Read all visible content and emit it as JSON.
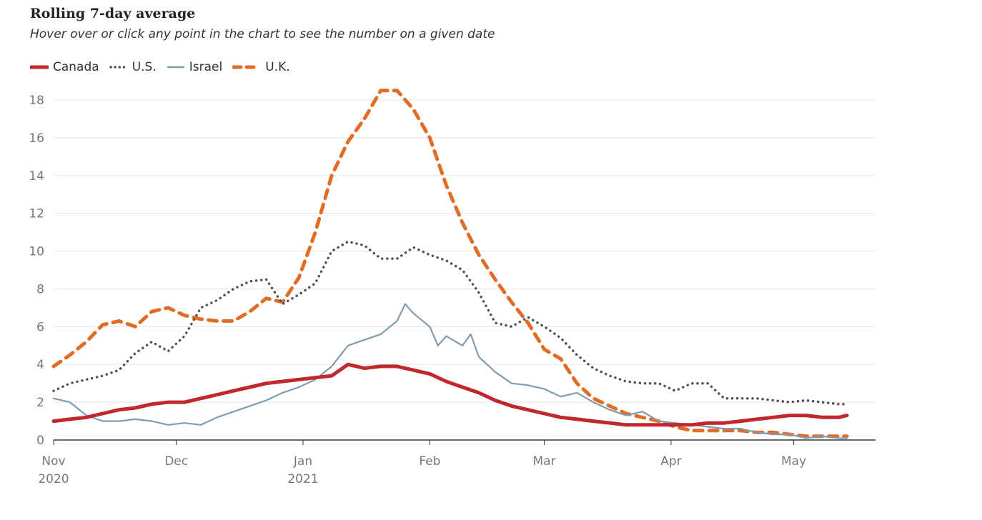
{
  "title": "Rolling 7-day average",
  "subtitle": "Hover over or click any point in the chart to see the number on a given date",
  "colors": {
    "Canada": "#c1272d",
    "U.S.": "#4d5259",
    "Israel": "#7f9cb0",
    "U.K.": "#e06c25",
    "grid": "#e3e3e3",
    "axis": "#333333"
  },
  "chart_data": {
    "type": "line",
    "title": "Rolling 7-day average",
    "subtitle": "Hover over or click any point in the chart to see the number on a given date",
    "xlabel": "",
    "ylabel": "",
    "ylim": [
      0,
      18
    ],
    "yticks": [
      "0",
      "2",
      "4",
      "6",
      "8",
      "10",
      "12",
      "14",
      "16",
      "18"
    ],
    "xlim": [
      "2020-11-01",
      "2021-05-21"
    ],
    "xticks": [
      {
        "date": "2020-11-01",
        "label": "Nov",
        "sublabel": "2020"
      },
      {
        "date": "2020-12-01",
        "label": "Dec",
        "sublabel": ""
      },
      {
        "date": "2021-01-01",
        "label": "Jan",
        "sublabel": "2021"
      },
      {
        "date": "2021-02-01",
        "label": "Feb",
        "sublabel": ""
      },
      {
        "date": "2021-03-01",
        "label": "Mar",
        "sublabel": ""
      },
      {
        "date": "2021-04-01",
        "label": "Apr",
        "sublabel": ""
      },
      {
        "date": "2021-05-01",
        "label": "May",
        "sublabel": ""
      }
    ],
    "grid": true,
    "legend": "top-left",
    "series": [
      {
        "name": "Canada",
        "style": "solid-thick",
        "x": [
          "2020-11-01",
          "2020-11-05",
          "2020-11-09",
          "2020-11-13",
          "2020-11-17",
          "2020-11-21",
          "2020-11-25",
          "2020-11-29",
          "2020-12-03",
          "2020-12-07",
          "2020-12-11",
          "2020-12-15",
          "2020-12-19",
          "2020-12-23",
          "2020-12-27",
          "2020-12-31",
          "2021-01-04",
          "2021-01-08",
          "2021-01-10",
          "2021-01-12",
          "2021-01-16",
          "2021-01-20",
          "2021-01-24",
          "2021-01-28",
          "2021-02-01",
          "2021-02-05",
          "2021-02-09",
          "2021-02-13",
          "2021-02-17",
          "2021-02-21",
          "2021-02-25",
          "2021-03-01",
          "2021-03-05",
          "2021-03-09",
          "2021-03-13",
          "2021-03-17",
          "2021-03-21",
          "2021-03-25",
          "2021-03-29",
          "2021-04-02",
          "2021-04-06",
          "2021-04-10",
          "2021-04-14",
          "2021-04-18",
          "2021-04-22",
          "2021-04-26",
          "2021-04-30",
          "2021-05-04",
          "2021-05-08",
          "2021-05-12",
          "2021-05-14"
        ],
        "y": [
          1.0,
          1.1,
          1.2,
          1.4,
          1.6,
          1.7,
          1.9,
          2.0,
          2.0,
          2.2,
          2.4,
          2.6,
          2.8,
          3.0,
          3.1,
          3.2,
          3.3,
          3.4,
          3.7,
          4.0,
          3.8,
          3.9,
          3.9,
          3.7,
          3.5,
          3.1,
          2.8,
          2.5,
          2.1,
          1.8,
          1.6,
          1.4,
          1.2,
          1.1,
          1.0,
          0.9,
          0.8,
          0.8,
          0.8,
          0.8,
          0.8,
          0.9,
          0.9,
          1.0,
          1.1,
          1.2,
          1.3,
          1.3,
          1.2,
          1.2,
          1.3
        ]
      },
      {
        "name": "U.S.",
        "style": "dotted",
        "x": [
          "2020-11-01",
          "2020-11-05",
          "2020-11-09",
          "2020-11-13",
          "2020-11-17",
          "2020-11-21",
          "2020-11-25",
          "2020-11-29",
          "2020-12-03",
          "2020-12-07",
          "2020-12-11",
          "2020-12-15",
          "2020-12-19",
          "2020-12-23",
          "2020-12-27",
          "2020-12-31",
          "2021-01-04",
          "2021-01-08",
          "2021-01-12",
          "2021-01-16",
          "2021-01-20",
          "2021-01-24",
          "2021-01-28",
          "2021-02-01",
          "2021-02-05",
          "2021-02-09",
          "2021-02-13",
          "2021-02-17",
          "2021-02-21",
          "2021-02-25",
          "2021-03-01",
          "2021-03-05",
          "2021-03-09",
          "2021-03-13",
          "2021-03-17",
          "2021-03-21",
          "2021-03-25",
          "2021-03-29",
          "2021-04-02",
          "2021-04-06",
          "2021-04-10",
          "2021-04-14",
          "2021-04-18",
          "2021-04-22",
          "2021-04-26",
          "2021-04-30",
          "2021-05-04",
          "2021-05-08",
          "2021-05-12",
          "2021-05-14"
        ],
        "y": [
          2.6,
          3.0,
          3.2,
          3.4,
          3.7,
          4.6,
          5.2,
          4.7,
          5.5,
          7.0,
          7.4,
          8.0,
          8.4,
          8.5,
          7.2,
          7.7,
          8.3,
          10.0,
          10.5,
          10.3,
          9.6,
          9.6,
          10.2,
          9.8,
          9.5,
          9.0,
          7.8,
          6.2,
          6.0,
          6.5,
          6.0,
          5.4,
          4.5,
          3.8,
          3.4,
          3.1,
          3.0,
          3.0,
          2.6,
          3.0,
          3.0,
          2.2,
          2.2,
          2.2,
          2.1,
          2.0,
          2.1,
          2.0,
          1.9,
          1.9
        ]
      },
      {
        "name": "Israel",
        "style": "solid-thin",
        "x": [
          "2020-11-01",
          "2020-11-05",
          "2020-11-09",
          "2020-11-13",
          "2020-11-17",
          "2020-11-21",
          "2020-11-25",
          "2020-11-29",
          "2020-12-03",
          "2020-12-07",
          "2020-12-11",
          "2020-12-15",
          "2020-12-19",
          "2020-12-23",
          "2020-12-27",
          "2020-12-31",
          "2021-01-04",
          "2021-01-08",
          "2021-01-12",
          "2021-01-16",
          "2021-01-20",
          "2021-01-24",
          "2021-01-26",
          "2021-01-28",
          "2021-02-01",
          "2021-02-03",
          "2021-02-05",
          "2021-02-09",
          "2021-02-11",
          "2021-02-13",
          "2021-02-17",
          "2021-02-21",
          "2021-02-25",
          "2021-03-01",
          "2021-03-05",
          "2021-03-09",
          "2021-03-13",
          "2021-03-17",
          "2021-03-21",
          "2021-03-25",
          "2021-03-29",
          "2021-04-02",
          "2021-04-06",
          "2021-04-10",
          "2021-04-14",
          "2021-04-18",
          "2021-04-22",
          "2021-04-26",
          "2021-04-30",
          "2021-05-04",
          "2021-05-08",
          "2021-05-12",
          "2021-05-14"
        ],
        "y": [
          2.2,
          2.0,
          1.3,
          1.0,
          1.0,
          1.1,
          1.0,
          0.8,
          0.9,
          0.8,
          1.2,
          1.5,
          1.8,
          2.1,
          2.5,
          2.8,
          3.2,
          3.9,
          5.0,
          5.3,
          5.6,
          6.3,
          7.2,
          6.7,
          6.0,
          5.0,
          5.5,
          5.0,
          5.6,
          4.4,
          3.6,
          3.0,
          2.9,
          2.7,
          2.3,
          2.5,
          2.0,
          1.6,
          1.3,
          1.5,
          1.0,
          0.9,
          0.8,
          0.7,
          0.6,
          0.6,
          0.4,
          0.3,
          0.3,
          0.1,
          0.2,
          0.1,
          0.1
        ]
      },
      {
        "name": "U.K.",
        "style": "dashed",
        "x": [
          "2020-11-01",
          "2020-11-05",
          "2020-11-09",
          "2020-11-13",
          "2020-11-17",
          "2020-11-21",
          "2020-11-25",
          "2020-11-29",
          "2020-12-03",
          "2020-12-07",
          "2020-12-11",
          "2020-12-15",
          "2020-12-19",
          "2020-12-23",
          "2020-12-27",
          "2020-12-31",
          "2021-01-04",
          "2021-01-08",
          "2021-01-12",
          "2021-01-16",
          "2021-01-20",
          "2021-01-24",
          "2021-01-28",
          "2021-02-01",
          "2021-02-05",
          "2021-02-09",
          "2021-02-13",
          "2021-02-17",
          "2021-02-21",
          "2021-02-25",
          "2021-03-01",
          "2021-03-05",
          "2021-03-09",
          "2021-03-13",
          "2021-03-17",
          "2021-03-21",
          "2021-03-25",
          "2021-03-29",
          "2021-04-02",
          "2021-04-06",
          "2021-04-10",
          "2021-04-14",
          "2021-04-18",
          "2021-04-22",
          "2021-04-26",
          "2021-04-30",
          "2021-05-04",
          "2021-05-08",
          "2021-05-12",
          "2021-05-14"
        ],
        "y": [
          3.9,
          4.5,
          5.2,
          6.1,
          6.3,
          6.0,
          6.8,
          7.0,
          6.6,
          6.4,
          6.3,
          6.3,
          6.8,
          7.5,
          7.3,
          8.6,
          11.0,
          14.0,
          15.8,
          17.0,
          18.5,
          18.5,
          17.5,
          16.0,
          13.5,
          11.5,
          9.8,
          8.5,
          7.3,
          6.2,
          4.8,
          4.3,
          3.0,
          2.2,
          1.8,
          1.4,
          1.2,
          1.0,
          0.7,
          0.5,
          0.5,
          0.5,
          0.5,
          0.4,
          0.4,
          0.3,
          0.2,
          0.2,
          0.2,
          0.2
        ]
      }
    ]
  }
}
